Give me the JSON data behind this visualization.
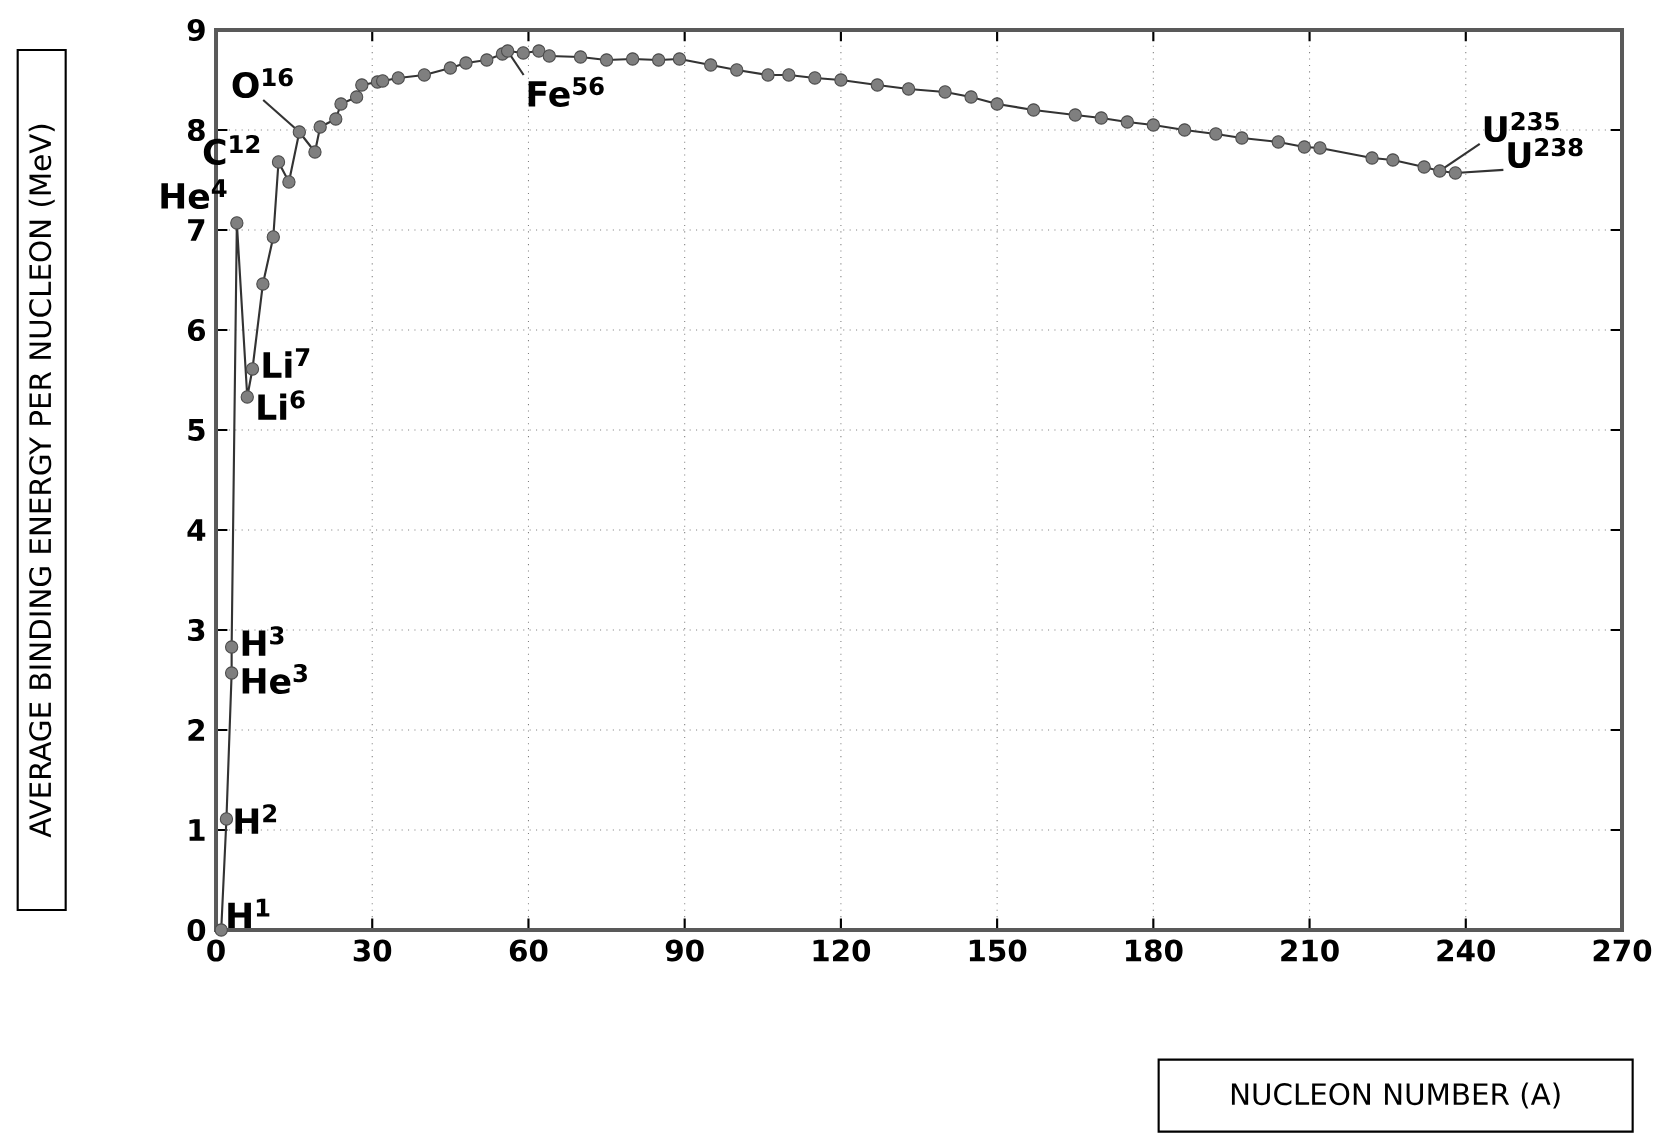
{
  "chart_data": {
    "type": "line",
    "xlabel": "NUCLEON NUMBER (A)",
    "ylabel": "AVERAGE BINDING ENERGY PER NUCLEON (MeV)",
    "x": [
      1,
      2,
      3,
      3,
      4,
      6,
      7,
      9,
      11,
      12,
      14,
      16,
      19,
      20,
      23,
      24,
      27,
      28,
      31,
      32,
      35,
      40,
      45,
      48,
      52,
      55,
      56,
      59,
      62,
      64,
      70,
      75,
      80,
      85,
      89,
      95,
      100,
      106,
      110,
      115,
      120,
      127,
      133,
      140,
      145,
      150,
      157,
      165,
      170,
      175,
      180,
      186,
      192,
      197,
      204,
      209,
      212,
      222,
      226,
      232,
      235,
      238
    ],
    "series": [
      {
        "color": "#7f7f7f",
        "values": [
          0,
          1.11,
          2.57,
          2.83,
          7.07,
          5.33,
          5.61,
          6.46,
          6.93,
          7.68,
          7.48,
          7.98,
          7.78,
          8.03,
          8.11,
          8.26,
          8.33,
          8.45,
          8.48,
          8.49,
          8.52,
          8.55,
          8.62,
          8.67,
          8.7,
          8.76,
          8.79,
          8.77,
          8.79,
          8.74,
          8.73,
          8.7,
          8.71,
          8.7,
          8.71,
          8.65,
          8.6,
          8.55,
          8.55,
          8.52,
          8.5,
          8.45,
          8.41,
          8.38,
          8.33,
          8.26,
          8.2,
          8.15,
          8.12,
          8.08,
          8.05,
          8,
          7.96,
          7.92,
          7.88,
          7.83,
          7.82,
          7.72,
          7.7,
          7.63,
          7.59,
          7.57
        ]
      }
    ],
    "marker": "circle",
    "line_style": "solid",
    "grid": true,
    "xlim": [
      0,
      270
    ],
    "xticks": [
      0,
      30,
      60,
      90,
      120,
      150,
      180,
      210,
      240,
      270
    ],
    "ylim": [
      0,
      9
    ],
    "yticks": [
      0,
      1,
      2,
      3,
      4,
      5,
      6,
      7,
      8,
      9
    ],
    "annotations": [
      {
        "text": "H$^{1}$",
        "x": 1,
        "y": 0
      },
      {
        "text": "H$^{2}$",
        "x": 2,
        "y": 1.11
      },
      {
        "text": "H$^{3}$",
        "x": 3,
        "y": 2.83
      },
      {
        "text": "He$^{3}$",
        "x": 3,
        "y": 2.57
      },
      {
        "text": "He$^{4}$",
        "x": 4,
        "y": 7.07
      },
      {
        "text": "Li$^{7}$",
        "x": 7,
        "y": 5.61
      },
      {
        "text": "Li$^{6}$",
        "x": 6,
        "y": 5.33
      },
      {
        "text": "C$^{12}$",
        "x": 12,
        "y": 7.68
      },
      {
        "text": "O$^{16}$",
        "x": 16,
        "y": 7.98
      },
      {
        "text": "Fe$^{56}$",
        "x": 56,
        "y": 8.79
      },
      {
        "text": "U$^{235}$",
        "x": 235,
        "y": 7.59
      },
      {
        "text": "U$^{238}$",
        "x": 238,
        "y": 7.57
      }
    ]
  }
}
